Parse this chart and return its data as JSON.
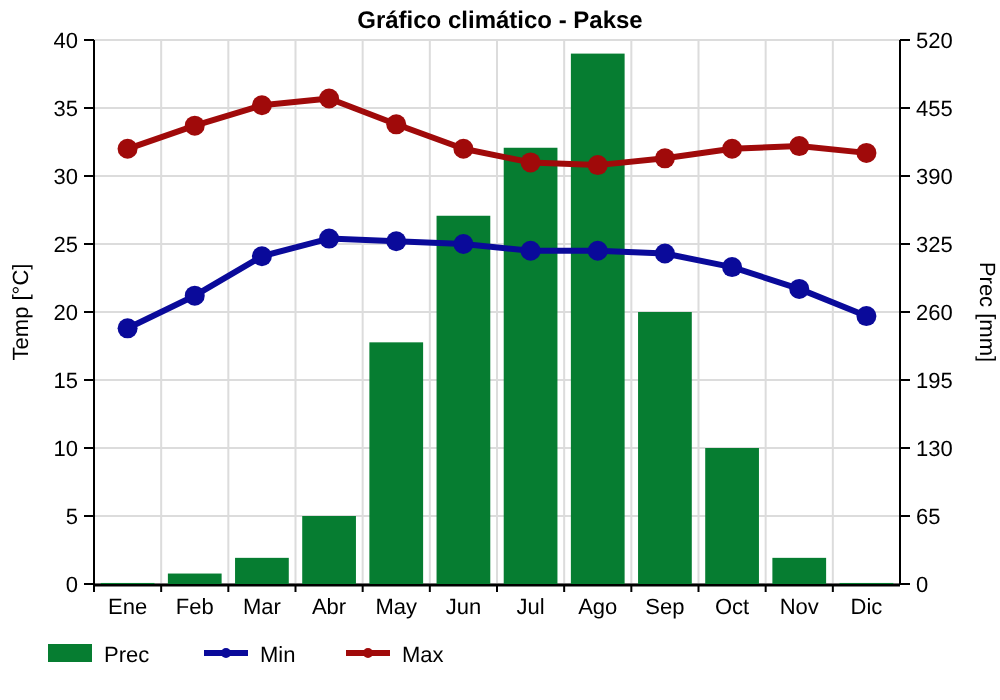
{
  "chart_data": {
    "type": "bar",
    "title": "Gráfico climático - Pakse",
    "ylabel": "Temp [°C]",
    "y2label": "Prec [mm]",
    "categories": [
      "Ene",
      "Feb",
      "Mar",
      "Abr",
      "May",
      "Jun",
      "Jul",
      "Ago",
      "Sep",
      "Oct",
      "Nov",
      "Dic"
    ],
    "series": [
      {
        "name": "Prec",
        "axis": "y2",
        "color": "#067d31",
        "values": [
          1,
          10,
          25,
          65,
          231,
          352,
          417,
          507,
          260,
          130,
          25,
          1
        ]
      },
      {
        "name": "Min",
        "type": "line",
        "color": "#0a0a9a",
        "marker": "circle",
        "values": [
          18.8,
          21.2,
          24.1,
          25.4,
          25.2,
          25.0,
          24.5,
          24.5,
          24.3,
          23.3,
          21.7,
          19.7
        ]
      },
      {
        "name": "Max",
        "type": "line",
        "color": "#a00a0a",
        "marker": "circle",
        "values": [
          32.0,
          33.7,
          35.2,
          35.7,
          33.8,
          32.0,
          31.0,
          30.8,
          31.3,
          32.0,
          32.2,
          31.7
        ]
      }
    ],
    "ylim": [
      0,
      40
    ],
    "yticks": [
      0,
      5,
      10,
      15,
      20,
      25,
      30,
      35,
      40
    ],
    "y2lim": [
      0,
      520
    ],
    "y2ticks": [
      0,
      65,
      130,
      195,
      260,
      325,
      390,
      455,
      520
    ],
    "grid": true,
    "legend": "bottom"
  }
}
